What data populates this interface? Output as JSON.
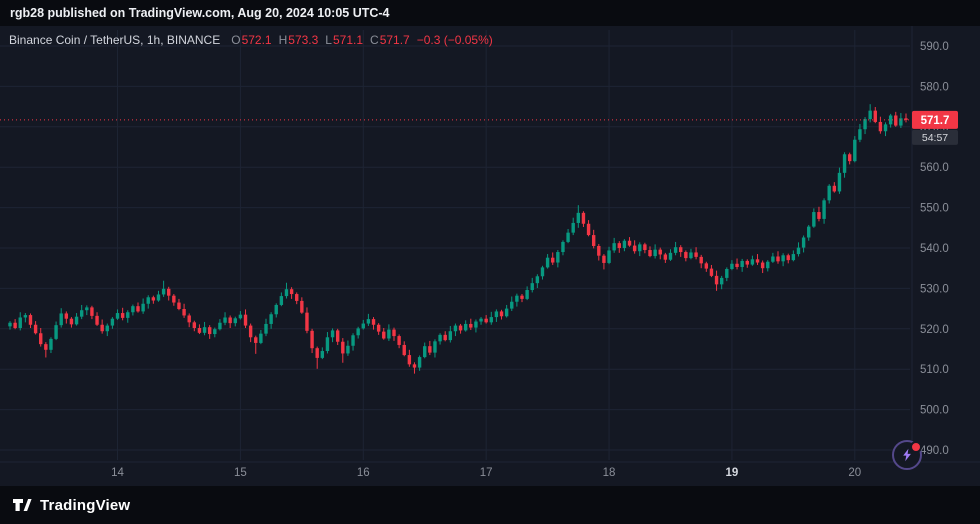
{
  "banner": {
    "text": "rgb28 published on TradingView.com, Aug 20, 2024 10:05 UTC-4"
  },
  "legend": {
    "title": "Binance Coin / TetherUS, 1h, BINANCE",
    "items": [
      {
        "label": "O",
        "value": "572.1"
      },
      {
        "label": "H",
        "value": "573.3"
      },
      {
        "label": "L",
        "value": "571.1"
      },
      {
        "label": "C",
        "value": "571.7"
      }
    ],
    "change": "−0.3 (−0.05%)"
  },
  "footer": {
    "brand": "TradingView"
  },
  "colors": {
    "background": "#141823",
    "banner": "#090b10",
    "grid": "#1e2434",
    "up": "#089981",
    "down": "#f23645",
    "axis_text": "#8b8f99",
    "axis_text_strong": "#d6d9e0",
    "last_price": "#f23645",
    "countdown_bg": "#2a2e39",
    "countdown_text": "#d8dade"
  },
  "chart_data": {
    "type": "candlestick",
    "symbol": "Binance Coin / TetherUS",
    "exchange": "BINANCE",
    "interval": "1h",
    "legend_ohlc": {
      "open": 572.1,
      "high": 573.3,
      "low": 571.1,
      "close": 571.7,
      "change": -0.3,
      "change_pct": "-0.05%"
    },
    "y_ticks": [
      {
        "value": 590,
        "label": "590.0"
      },
      {
        "value": 580,
        "label": "580.0"
      },
      {
        "value": 570,
        "label": "570.0"
      },
      {
        "value": 560,
        "label": "560.0"
      },
      {
        "value": 550,
        "label": "550.0"
      },
      {
        "value": 540,
        "label": "540.0"
      },
      {
        "value": 530,
        "label": "530.0"
      },
      {
        "value": 520,
        "label": "520.0"
      },
      {
        "value": 510,
        "label": "510.0"
      },
      {
        "value": 500,
        "label": "500.0"
      },
      {
        "value": 490,
        "label": "490.0"
      }
    ],
    "x_ticks": [
      {
        "label": "14",
        "index": 21,
        "strong": false
      },
      {
        "label": "15",
        "index": 45,
        "strong": false
      },
      {
        "label": "16",
        "index": 69,
        "strong": false
      },
      {
        "label": "17",
        "index": 93,
        "strong": false
      },
      {
        "label": "18",
        "index": 117,
        "strong": false
      },
      {
        "label": "19",
        "index": 141,
        "strong": true
      },
      {
        "label": "20",
        "index": 165,
        "strong": false
      }
    ],
    "last": {
      "price": 571.7,
      "label": "571.7",
      "countdown": "54:57"
    },
    "candles": [
      [
        520.6,
        521.9,
        519.8,
        521.5
      ],
      [
        521.5,
        522.4,
        519.9,
        520.2
      ],
      [
        520.2,
        524.1,
        519.6,
        522.8
      ],
      [
        522.8,
        523.9,
        521.6,
        523.4
      ],
      [
        523.4,
        523.8,
        520.2,
        521.0
      ],
      [
        521.0,
        521.9,
        518.6,
        518.9
      ],
      [
        518.9,
        520.2,
        515.6,
        516.2
      ],
      [
        516.2,
        516.7,
        512.9,
        514.8
      ],
      [
        514.8,
        517.9,
        514.0,
        517.5
      ],
      [
        517.5,
        521.8,
        517.2,
        520.9
      ],
      [
        520.9,
        525.1,
        520.3,
        523.8
      ],
      [
        523.8,
        524.3,
        521.3,
        522.5
      ],
      [
        522.5,
        522.9,
        520.3,
        521.1
      ],
      [
        521.1,
        523.9,
        520.8,
        523.0
      ],
      [
        523.0,
        525.9,
        522.4,
        524.6
      ],
      [
        524.6,
        525.8,
        523.4,
        525.3
      ],
      [
        525.3,
        525.7,
        522.4,
        523.2
      ],
      [
        523.2,
        524.1,
        520.7,
        521.0
      ],
      [
        521.0,
        522.3,
        518.8,
        519.4
      ],
      [
        519.4,
        521.3,
        518.2,
        520.8
      ],
      [
        520.8,
        522.9,
        520.0,
        522.5
      ],
      [
        522.5,
        524.8,
        522.2,
        523.9
      ],
      [
        523.9,
        525.2,
        522.1,
        522.7
      ],
      [
        522.7,
        524.6,
        521.5,
        524.1
      ],
      [
        524.1,
        526.0,
        523.3,
        525.6
      ],
      [
        525.6,
        526.5,
        524.0,
        524.3
      ],
      [
        524.3,
        527.5,
        523.7,
        526.2
      ],
      [
        526.2,
        528.3,
        525.0,
        527.8
      ],
      [
        527.8,
        528.2,
        526.2,
        527.0
      ],
      [
        527.0,
        529.4,
        526.7,
        528.5
      ],
      [
        528.5,
        531.9,
        527.9,
        529.9
      ],
      [
        529.9,
        530.4,
        527.0,
        528.2
      ],
      [
        528.2,
        528.6,
        525.7,
        526.5
      ],
      [
        526.5,
        527.4,
        524.6,
        524.9
      ],
      [
        524.9,
        526.2,
        522.7,
        523.3
      ],
      [
        523.3,
        523.8,
        520.4,
        521.6
      ],
      [
        521.6,
        522.0,
        519.4,
        520.2
      ],
      [
        520.2,
        521.1,
        518.7,
        519.0
      ],
      [
        519.0,
        521.7,
        518.4,
        520.4
      ],
      [
        520.4,
        520.9,
        517.5,
        518.7
      ],
      [
        518.7,
        520.3,
        517.9,
        519.9
      ],
      [
        519.9,
        522.4,
        519.6,
        521.5
      ],
      [
        521.5,
        524.1,
        520.9,
        522.8
      ],
      [
        522.8,
        523.3,
        520.2,
        521.4
      ],
      [
        521.4,
        523.0,
        520.6,
        522.6
      ],
      [
        522.6,
        524.4,
        522.3,
        523.5
      ],
      [
        523.5,
        524.8,
        520.2,
        520.8
      ],
      [
        520.8,
        521.3,
        516.7,
        517.9
      ],
      [
        517.9,
        518.3,
        513.8,
        516.5
      ],
      [
        516.5,
        519.7,
        516.2,
        518.8
      ],
      [
        518.8,
        522.5,
        518.2,
        521.2
      ],
      [
        521.2,
        524.1,
        520.0,
        523.6
      ],
      [
        523.6,
        526.3,
        522.8,
        525.9
      ],
      [
        525.9,
        529.0,
        525.6,
        528.1
      ],
      [
        528.1,
        531.4,
        527.5,
        529.8
      ],
      [
        529.8,
        530.3,
        527.4,
        528.6
      ],
      [
        528.6,
        529.0,
        526.1,
        526.9
      ],
      [
        526.9,
        527.8,
        523.7,
        524.0
      ],
      [
        524.0,
        525.3,
        518.9,
        519.5
      ],
      [
        519.5,
        520.0,
        514.0,
        515.2
      ],
      [
        515.2,
        515.6,
        510.1,
        512.8
      ],
      [
        512.8,
        515.4,
        512.5,
        514.5
      ],
      [
        514.5,
        519.2,
        513.9,
        517.9
      ],
      [
        517.9,
        520.1,
        516.7,
        519.6
      ],
      [
        519.6,
        520.0,
        516.0,
        516.8
      ],
      [
        516.8,
        517.7,
        511.6,
        513.9
      ],
      [
        513.9,
        517.1,
        513.3,
        515.8
      ],
      [
        515.8,
        518.9,
        514.6,
        518.4
      ],
      [
        518.4,
        520.5,
        517.6,
        520.1
      ],
      [
        520.1,
        522.2,
        519.8,
        521.3
      ],
      [
        521.3,
        523.7,
        520.7,
        522.4
      ],
      [
        522.4,
        522.9,
        519.8,
        521.0
      ],
      [
        521.0,
        521.4,
        518.5,
        519.3
      ],
      [
        519.3,
        520.2,
        517.3,
        517.6
      ],
      [
        517.6,
        521.1,
        517.0,
        519.8
      ],
      [
        519.8,
        520.3,
        517.0,
        518.2
      ],
      [
        518.2,
        518.6,
        515.2,
        516.0
      ],
      [
        516.0,
        516.9,
        513.2,
        513.5
      ],
      [
        513.5,
        514.8,
        510.6,
        511.2
      ],
      [
        511.2,
        511.7,
        508.9,
        510.4
      ],
      [
        510.4,
        513.4,
        509.6,
        513.0
      ],
      [
        513.0,
        516.6,
        512.7,
        515.7
      ],
      [
        515.7,
        517.0,
        513.5,
        514.1
      ],
      [
        514.1,
        517.4,
        512.9,
        516.9
      ],
      [
        516.9,
        518.9,
        516.1,
        518.5
      ],
      [
        518.5,
        519.4,
        516.9,
        517.2
      ],
      [
        517.2,
        520.7,
        516.6,
        519.4
      ],
      [
        519.4,
        521.3,
        518.2,
        520.8
      ],
      [
        520.8,
        521.2,
        518.8,
        519.6
      ],
      [
        519.6,
        522.1,
        519.3,
        521.2
      ],
      [
        521.2,
        522.5,
        519.7,
        520.3
      ],
      [
        520.3,
        522.3,
        519.1,
        521.8
      ],
      [
        521.8,
        522.9,
        521.0,
        522.5
      ],
      [
        522.5,
        523.4,
        521.3,
        521.6
      ],
      [
        521.6,
        524.2,
        521.0,
        522.9
      ],
      [
        522.9,
        524.8,
        521.7,
        524.3
      ],
      [
        524.3,
        524.7,
        522.3,
        523.1
      ],
      [
        523.1,
        525.9,
        522.8,
        525.0
      ],
      [
        525.0,
        528.0,
        524.4,
        526.7
      ],
      [
        526.7,
        528.7,
        525.5,
        528.2
      ],
      [
        528.2,
        528.6,
        526.6,
        527.4
      ],
      [
        527.4,
        530.5,
        527.1,
        529.6
      ],
      [
        529.6,
        532.6,
        529.0,
        531.3
      ],
      [
        531.3,
        533.5,
        530.1,
        533.0
      ],
      [
        533.0,
        535.6,
        532.2,
        535.2
      ],
      [
        535.2,
        538.5,
        534.9,
        537.6
      ],
      [
        537.6,
        538.9,
        535.8,
        536.4
      ],
      [
        536.4,
        539.5,
        535.2,
        539.0
      ],
      [
        539.0,
        541.9,
        538.2,
        541.5
      ],
      [
        541.5,
        544.7,
        541.2,
        543.8
      ],
      [
        543.8,
        547.5,
        543.2,
        546.2
      ],
      [
        546.2,
        550.6,
        545.0,
        548.7
      ],
      [
        548.7,
        549.1,
        545.2,
        546.0
      ],
      [
        546.0,
        546.9,
        542.9,
        543.2
      ],
      [
        543.2,
        544.5,
        539.9,
        540.5
      ],
      [
        540.5,
        541.0,
        536.9,
        538.1
      ],
      [
        538.1,
        538.5,
        534.7,
        536.3
      ],
      [
        536.3,
        540.3,
        536.0,
        539.4
      ],
      [
        539.4,
        542.5,
        538.8,
        541.2
      ],
      [
        541.2,
        541.7,
        538.8,
        540.0
      ],
      [
        540.0,
        542.2,
        539.2,
        541.8
      ],
      [
        541.8,
        542.7,
        540.3,
        540.6
      ],
      [
        540.6,
        541.9,
        538.6,
        539.2
      ],
      [
        539.2,
        541.4,
        538.0,
        540.9
      ],
      [
        540.9,
        541.3,
        538.7,
        539.5
      ],
      [
        539.5,
        540.4,
        537.7,
        538.0
      ],
      [
        538.0,
        540.9,
        537.4,
        539.6
      ],
      [
        539.6,
        540.1,
        537.2,
        538.4
      ],
      [
        538.4,
        538.8,
        536.3,
        537.1
      ],
      [
        537.1,
        539.7,
        536.8,
        538.8
      ],
      [
        538.8,
        541.5,
        538.2,
        540.2
      ],
      [
        540.2,
        540.7,
        537.8,
        539.0
      ],
      [
        539.0,
        539.4,
        536.7,
        537.5
      ],
      [
        537.5,
        539.8,
        537.2,
        538.9
      ],
      [
        538.9,
        540.2,
        537.2,
        537.8
      ],
      [
        537.8,
        538.3,
        535.0,
        536.2
      ],
      [
        536.2,
        536.6,
        534.1,
        534.9
      ],
      [
        534.9,
        535.8,
        532.8,
        533.1
      ],
      [
        533.1,
        534.4,
        529.4,
        531.0
      ],
      [
        531.0,
        533.1,
        529.8,
        532.6
      ],
      [
        532.6,
        535.2,
        531.8,
        534.8
      ],
      [
        534.8,
        537.0,
        534.5,
        536.1
      ],
      [
        536.1,
        537.4,
        534.7,
        535.3
      ],
      [
        535.3,
        537.3,
        534.1,
        536.8
      ],
      [
        536.8,
        537.2,
        535.1,
        535.9
      ],
      [
        535.9,
        538.1,
        535.6,
        537.2
      ],
      [
        537.2,
        538.5,
        535.8,
        536.4
      ],
      [
        536.4,
        536.9,
        533.8,
        535.0
      ],
      [
        535.0,
        537.0,
        534.2,
        536.6
      ],
      [
        536.6,
        538.8,
        536.3,
        537.9
      ],
      [
        537.9,
        539.2,
        536.1,
        536.7
      ],
      [
        536.7,
        538.7,
        535.5,
        538.2
      ],
      [
        538.2,
        538.6,
        536.2,
        537.0
      ],
      [
        537.0,
        539.4,
        536.7,
        538.5
      ],
      [
        538.5,
        541.4,
        537.9,
        540.1
      ],
      [
        540.1,
        543.1,
        538.9,
        542.6
      ],
      [
        542.6,
        545.7,
        541.8,
        545.3
      ],
      [
        545.3,
        549.8,
        545.0,
        548.9
      ],
      [
        548.9,
        550.2,
        546.6,
        547.2
      ],
      [
        547.2,
        552.3,
        546.0,
        551.8
      ],
      [
        551.8,
        555.8,
        551.0,
        555.4
      ],
      [
        555.4,
        556.3,
        553.7,
        554.0
      ],
      [
        554.0,
        559.9,
        553.4,
        558.6
      ],
      [
        558.6,
        563.7,
        557.4,
        563.2
      ],
      [
        563.2,
        563.6,
        560.7,
        561.5
      ],
      [
        561.5,
        567.7,
        561.2,
        566.8
      ],
      [
        566.8,
        570.7,
        566.2,
        569.4
      ],
      [
        569.4,
        572.4,
        568.2,
        571.9
      ],
      [
        571.9,
        575.6,
        571.1,
        574.0
      ],
      [
        574.0,
        574.9,
        570.9,
        571.2
      ],
      [
        571.2,
        572.5,
        568.3,
        568.9
      ],
      [
        568.9,
        571.1,
        567.7,
        570.6
      ],
      [
        570.6,
        573.2,
        569.8,
        572.8
      ],
      [
        572.8,
        573.7,
        570.0,
        570.3
      ],
      [
        570.3,
        573.4,
        569.7,
        572.1
      ],
      [
        572.1,
        573.3,
        571.1,
        571.7
      ]
    ]
  }
}
